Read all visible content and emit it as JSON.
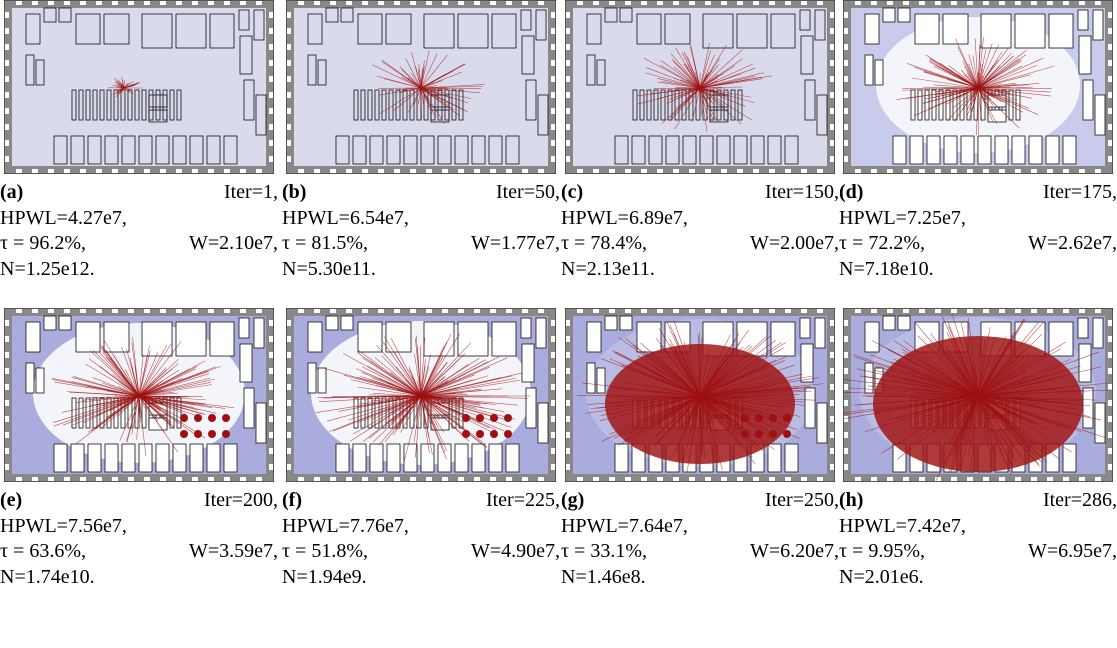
{
  "panels": [
    {
      "label": "(a)",
      "iter": "Iter=1,",
      "hpwl": "HPWL=4.27e7,",
      "tau": "τ = 96.2%,",
      "w": "W=2.10e7,",
      "n": "N=1.25e12."
    },
    {
      "label": "(b)",
      "iter": "Iter=50,",
      "hpwl": "HPWL=6.54e7,",
      "tau": "τ = 81.5%,",
      "w": "W=1.77e7,",
      "n": "N=5.30e11."
    },
    {
      "label": "(c)",
      "iter": "Iter=150,",
      "hpwl": "HPWL=6.89e7,",
      "tau": "τ = 78.4%,",
      "w": "W=2.00e7,",
      "n": "N=2.13e11."
    },
    {
      "label": "(d)",
      "iter": "Iter=175,",
      "hpwl": "HPWL=7.25e7,",
      "tau": "τ = 72.2%,",
      "w": "W=2.62e7,",
      "n": "N=7.18e10."
    },
    {
      "label": "(e)",
      "iter": "Iter=200,",
      "hpwl": "HPWL=7.56e7,",
      "tau": "τ = 63.6%,",
      "w": "W=3.59e7,",
      "n": "N=1.74e10."
    },
    {
      "label": "(f)",
      "iter": "Iter=225,",
      "hpwl": "HPWL=7.76e7,",
      "tau": "τ = 51.8%,",
      "w": "W=4.90e7,",
      "n": "N=1.94e9."
    },
    {
      "label": "(g)",
      "iter": "Iter=250,",
      "hpwl": "HPWL=7.64e7,",
      "tau": "τ = 33.1%,",
      "w": "W=6.20e7,",
      "n": "N=1.46e8."
    },
    {
      "label": "(h)",
      "iter": "Iter=286,",
      "hpwl": "HPWL=7.42e7,",
      "tau": "τ = 9.95%,",
      "w": "W=6.95e7,",
      "n": "N=2.01e6."
    }
  ]
}
